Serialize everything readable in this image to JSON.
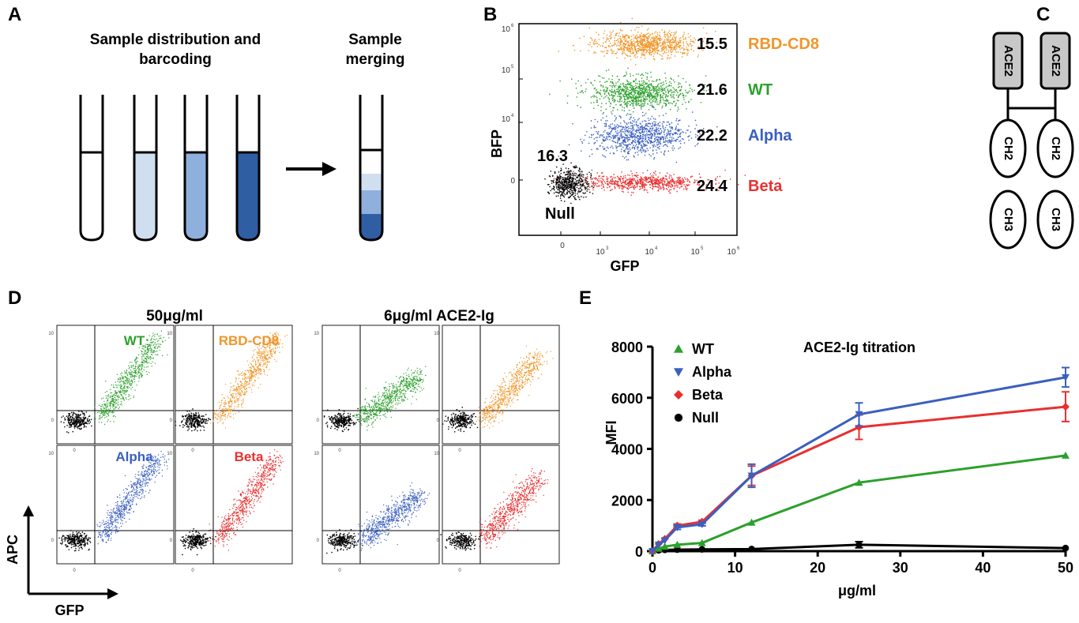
{
  "colors": {
    "wt": "#2ca02c",
    "alpha": "#3a5fbf",
    "beta": "#e8302f",
    "null": "#000000",
    "rbd": "#f0962a",
    "tube1": "#ffffff",
    "tube2": "#d0dff0",
    "tube3": "#8fb0dc",
    "tube4": "#2f5ea3",
    "domain_fill": "#c8c8c8"
  },
  "panel_a": {
    "label": "A",
    "heading_line1": "Sample distribution and",
    "heading_line2": "barcoding",
    "merge_line1": "Sample",
    "merge_line2": "merging"
  },
  "panel_b": {
    "label": "B",
    "y_label": "BFP",
    "x_label": "GFP",
    "x_ticks": [
      "0",
      "10",
      "10",
      "10",
      "10"
    ],
    "x_exps": [
      "",
      "3",
      "4",
      "5",
      "6"
    ],
    "y_ticks": [
      "0",
      "10",
      "10",
      "10"
    ],
    "y_exps": [
      "",
      "4",
      "5",
      "6"
    ],
    "null_pct": "16.3",
    "null_label": "Null",
    "populations": [
      {
        "name": "RBD-CD8",
        "percent": "15.5"
      },
      {
        "name": "WT",
        "percent": "21.6"
      },
      {
        "name": "Alpha",
        "percent": "22.2"
      },
      {
        "name": "Beta",
        "percent": "24.4"
      }
    ]
  },
  "panel_c": {
    "label": "C",
    "domains": [
      "ACE2",
      "ACE2",
      "CH2",
      "CH2",
      "CH3",
      "CH3"
    ]
  },
  "panel_d": {
    "label": "D",
    "title_left": "50μg/ml",
    "title_right": "6μg/ml ACE2-Ig",
    "quad_labels": [
      "WT",
      "RBD-CD8",
      "Alpha",
      "Beta"
    ],
    "y_axis": "APC",
    "x_axis": "GFP",
    "tick_small": "10",
    "tick_zero": "0"
  },
  "panel_e": {
    "label": "E",
    "chart_data": {
      "type": "line",
      "title": "ACE2-Ig titration",
      "xlabel": "μg/ml",
      "ylabel": "MFI",
      "xlim": [
        0,
        50
      ],
      "ylim": [
        0,
        8000
      ],
      "x_ticks": [
        0,
        10,
        20,
        30,
        40,
        50
      ],
      "y_ticks": [
        0,
        2000,
        4000,
        6000,
        8000
      ],
      "x": [
        0,
        0.75,
        1.5,
        3,
        6,
        12,
        25,
        50
      ],
      "series": [
        {
          "name": "WT",
          "marker": "triangle-up",
          "values": [
            0,
            100,
            180,
            250,
            320,
            1120,
            2680,
            3740
          ],
          "errors": [
            0,
            0,
            0,
            0,
            0,
            0,
            0,
            0
          ]
        },
        {
          "name": "Alpha",
          "marker": "triangle-down",
          "values": [
            0,
            250,
            420,
            930,
            1050,
            2950,
            5350,
            6800
          ],
          "errors": [
            0,
            0,
            0,
            80,
            60,
            450,
            450,
            380
          ]
        },
        {
          "name": "Beta",
          "marker": "diamond",
          "values": [
            0,
            280,
            480,
            1000,
            1150,
            2950,
            4850,
            5650
          ],
          "errors": [
            0,
            0,
            0,
            60,
            60,
            380,
            480,
            580
          ]
        },
        {
          "name": "Null",
          "marker": "circle",
          "values": [
            0,
            30,
            50,
            60,
            70,
            80,
            250,
            120
          ],
          "errors": [
            0,
            0,
            0,
            0,
            0,
            0,
            120,
            0
          ]
        }
      ]
    }
  }
}
